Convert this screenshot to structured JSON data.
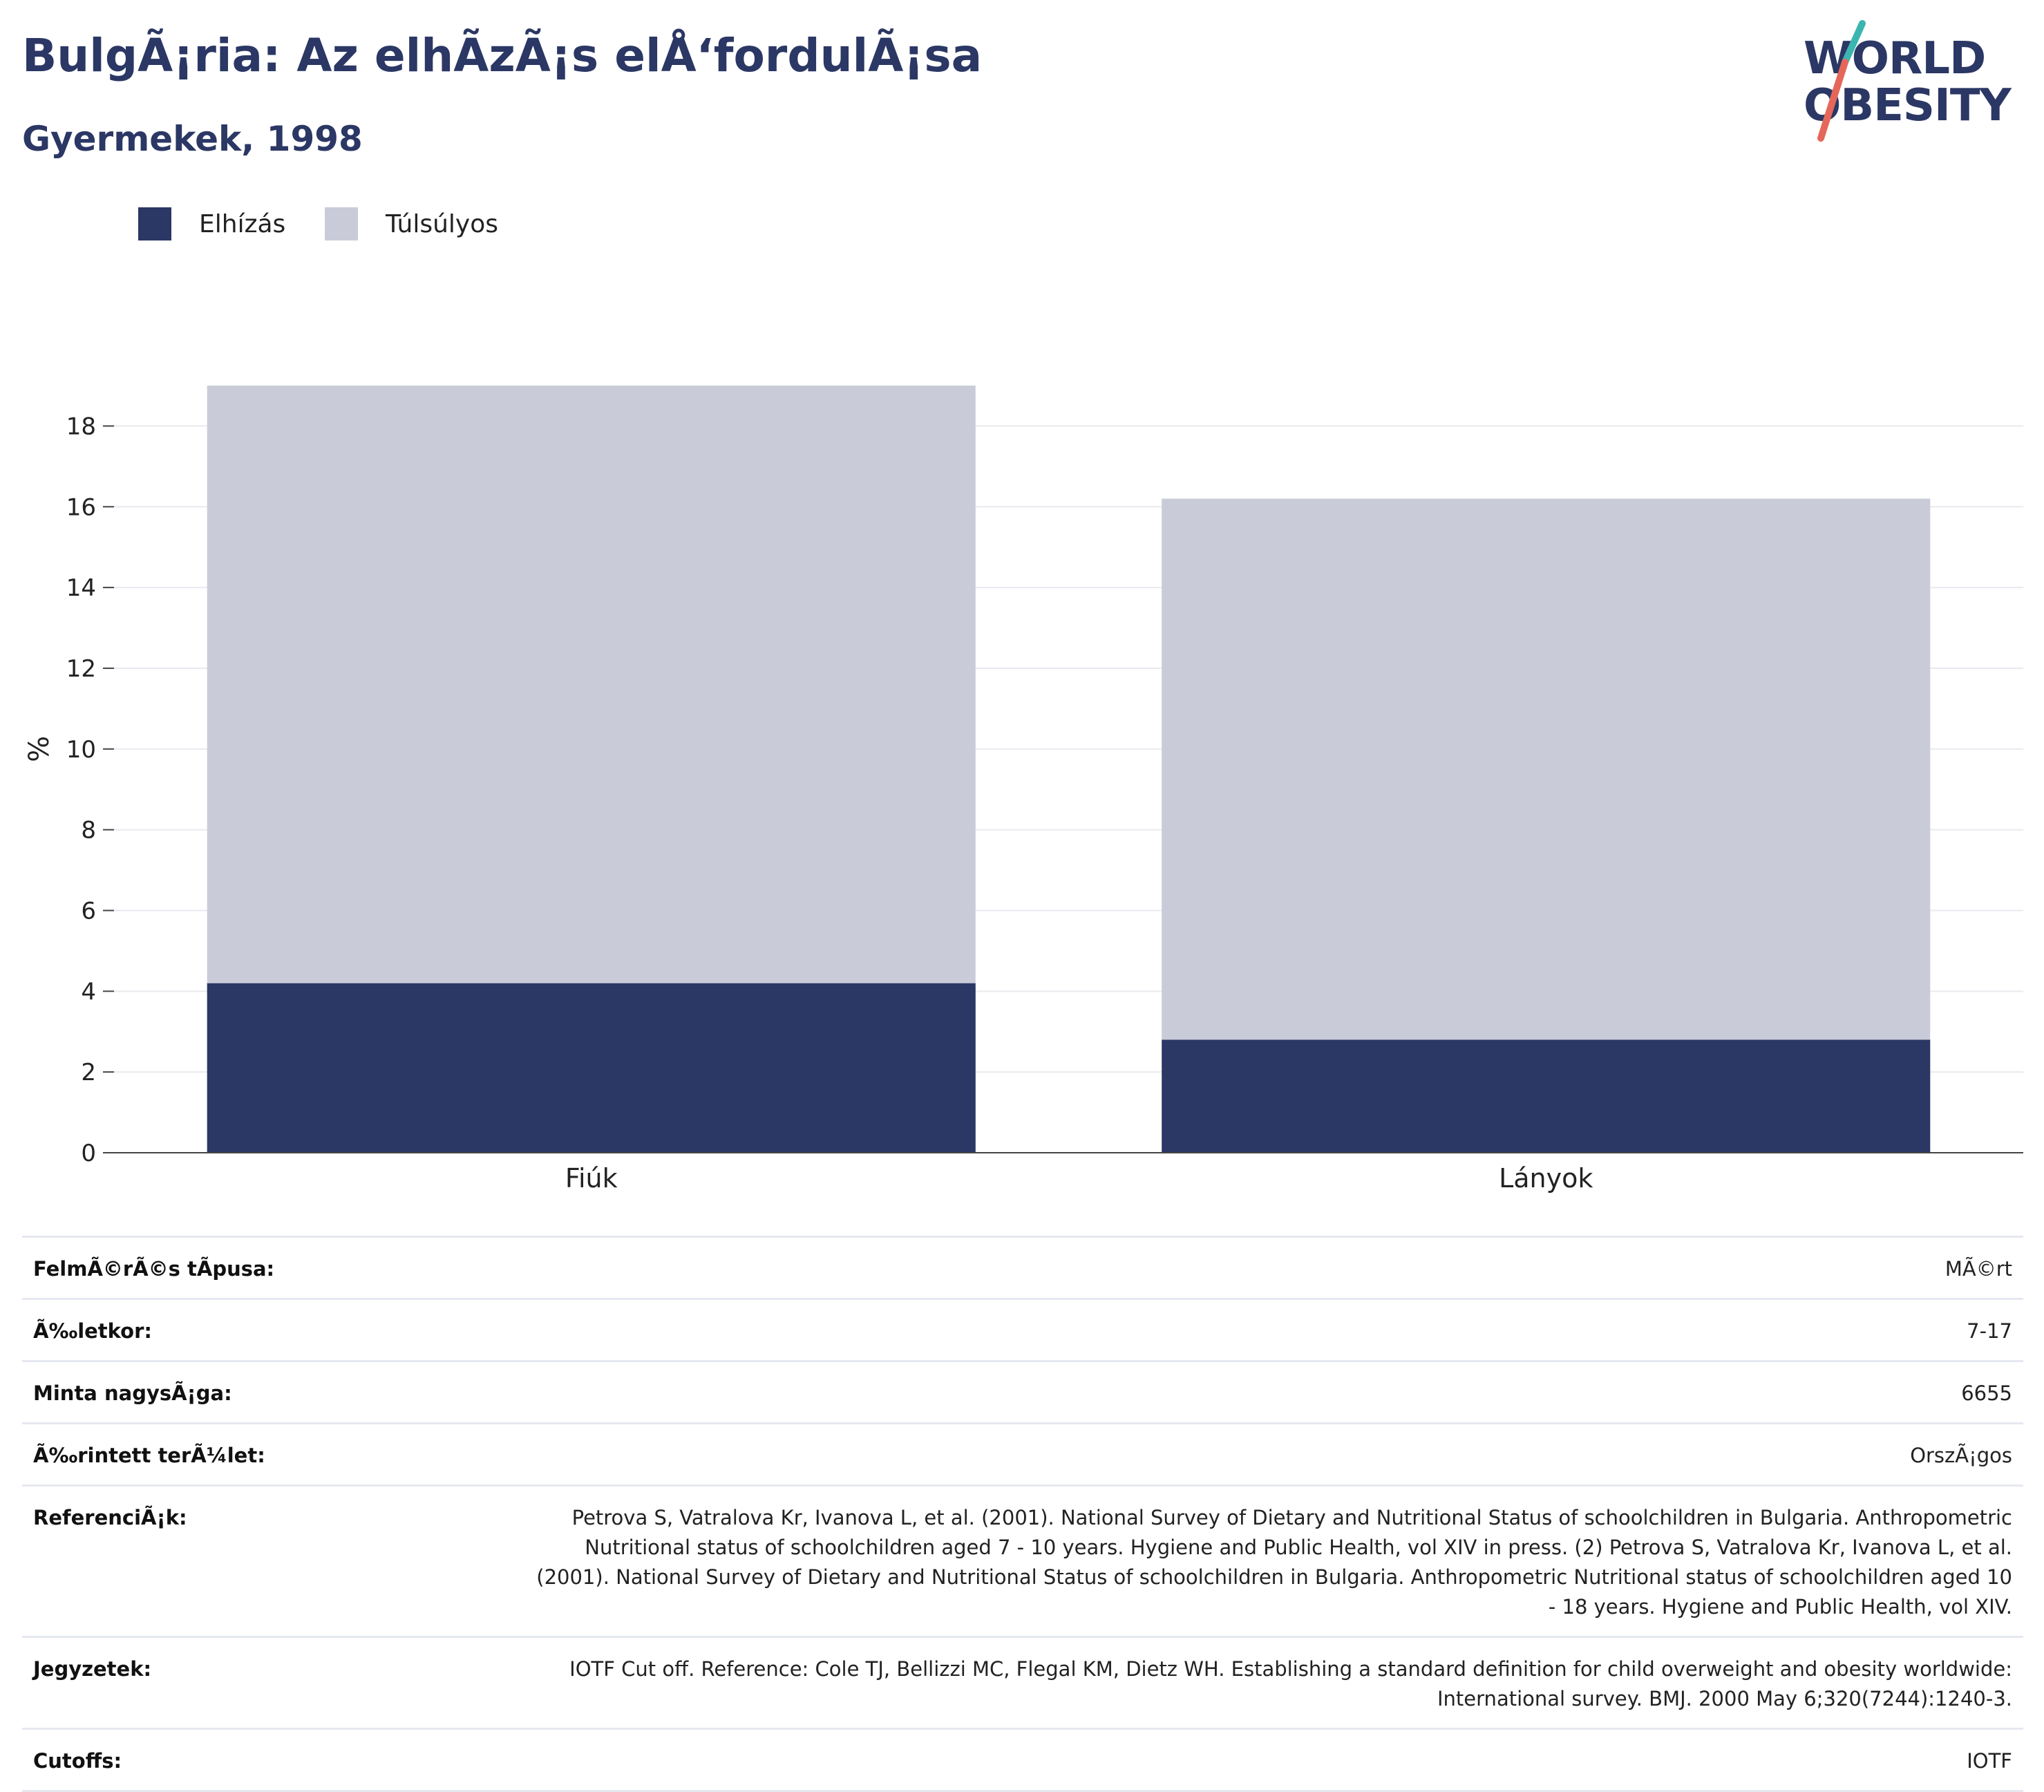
{
  "header": {
    "title": "BulgÃ¡ria: Az elhÃ­zÃ¡s elÅ‘fordulÃ¡sa",
    "subtitle": "Gyermekek, 1998"
  },
  "logo": {
    "line1": "WORLD",
    "line2": "OBESITY",
    "accent_teal": "#3bb5b0",
    "accent_coral": "#e5675a"
  },
  "legend": [
    {
      "label": "Elhízás",
      "color": "#2b3764"
    },
    {
      "label": "Túlsúlyos",
      "color": "#c9ccd8"
    }
  ],
  "chart_data": {
    "type": "bar",
    "stacked": true,
    "categories": [
      "Fiúk",
      "Lányok"
    ],
    "series": [
      {
        "name": "Elhízás",
        "color": "#2b3764",
        "values": [
          4.2,
          2.8
        ]
      },
      {
        "name": "Túlsúlyos",
        "color": "#c9ccd8",
        "values": [
          14.8,
          13.4
        ]
      }
    ],
    "ylabel": "%",
    "ylim": [
      0,
      19
    ],
    "yticks": [
      0,
      2,
      4,
      6,
      8,
      10,
      12,
      14,
      16,
      18
    ],
    "grid": true,
    "legend_position": "top-left"
  },
  "info": [
    {
      "label": "FelmÃ©rÃ©s tÃpusa:",
      "value": "MÃ©rt"
    },
    {
      "label": "Ã‰letkor:",
      "value": "7-17"
    },
    {
      "label": "Minta nagysÃ¡ga:",
      "value": "6655"
    },
    {
      "label": "Ã‰rintett terÃ¼let:",
      "value": "OrszÃ¡gos"
    },
    {
      "label": "ReferenciÃ¡k:",
      "value": "Petrova S, Vatralova Kr, Ivanova L, et al. (2001). National Survey of Dietary and Nutritional Status of schoolchildren in Bulgaria. Anthropometric Nutritional status of schoolchildren aged 7 - 10 years. Hygiene and Public Health, vol XIV in press. (2) Petrova S, Vatralova Kr, Ivanova L, et al. (2001). National Survey of Dietary and Nutritional Status of schoolchildren in Bulgaria. Anthropometric Nutritional status of schoolchildren aged 10 - 18 years. Hygiene and Public Health, vol XIV."
    },
    {
      "label": "Jegyzetek:",
      "value": "IOTF Cut off. Reference: Cole TJ, Bellizzi MC, Flegal KM, Dietz WH. Establishing a standard definition for child overweight and obesity worldwide: International survey. BMJ. 2000 May 6;320(7244):1240-3."
    },
    {
      "label": "Cutoffs:",
      "value": "IOTF"
    }
  ]
}
